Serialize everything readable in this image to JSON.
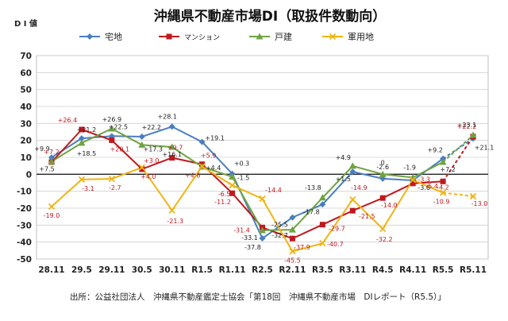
{
  "chart_data": {
    "type": "line",
    "title": "沖縄県不動産市場DI（取扱件数動向）",
    "ylabel": "D I 値",
    "xlabel": "",
    "ylim": [
      -50,
      70
    ],
    "yticks": [
      70,
      60,
      50,
      40,
      30,
      20,
      10,
      0,
      -10,
      -20,
      -30,
      -40,
      -50
    ],
    "categories": [
      "28.11",
      "29.5",
      "29.11",
      "30.5",
      "30.11",
      "R1.5",
      "R1.11",
      "R2.5",
      "R2.11",
      "R3.5",
      "R3.11",
      "R4.5",
      "R4.11",
      "R5.5",
      "R5.11"
    ],
    "grid": true,
    "legend_position": "top",
    "series": [
      {
        "name": "宅地",
        "color": "#4a7ec0",
        "marker": "diamond",
        "values": [
          9.9,
          21.2,
          22.5,
          22.2,
          28.1,
          19.1,
          0.3,
          -37.8,
          -25.5,
          -17.8,
          1.5,
          -2.6,
          -3.6,
          9.2,
          21.1
        ],
        "labels": [
          "+9.9",
          "+21.2",
          "+22.5",
          "+22.2",
          "+28.1",
          "+19.1",
          "+0.3",
          "-37.8",
          "-25.5",
          "-17.8",
          "+1.5",
          "-2.6",
          "-3.6",
          "+9.2",
          "+21.1"
        ]
      },
      {
        "name": "マンション",
        "color": "#c0181e",
        "marker": "square",
        "values": [
          7.2,
          26.4,
          20.1,
          3.0,
          9.7,
          5.9,
          -11.2,
          -31.4,
          -37.9,
          -29.7,
          -21.5,
          -14.0,
          -5.4,
          -4.2,
          22.2
        ],
        "labels": [
          "+7.2",
          "+26.4",
          "+20.1",
          "+3.0",
          "+9.7",
          "+5.9",
          "-11.2",
          "-31.4",
          "-37.9",
          "-29.7",
          "-21.5",
          "-14.0",
          "-5.4",
          "-4.2",
          "+22.2"
        ]
      },
      {
        "name": "戸建",
        "color": "#6ea342",
        "marker": "triangle",
        "values": [
          7.5,
          18.5,
          26.9,
          17.3,
          16.1,
          4.4,
          -1.5,
          -33.1,
          -32.7,
          -13.8,
          4.9,
          0.0,
          -1.9,
          7.2,
          23.1
        ],
        "labels": [
          "+7.5",
          "+18.5",
          "+26.9",
          "+17.3",
          "+16.1",
          "+4.4",
          "-1.5",
          "-33.1",
          "-32.7",
          "-13.8",
          "+4.9",
          "0",
          "-1.9",
          "+7.2",
          "+23.1"
        ]
      },
      {
        "name": "軍用地",
        "color": "#f0b414",
        "marker": "x",
        "values": [
          -19.0,
          -3.1,
          -2.7,
          4.0,
          -21.3,
          4.6,
          -6.5,
          -14.4,
          -45.5,
          -40.7,
          -14.9,
          -32.2,
          -3.3,
          -10.9,
          -13.0
        ],
        "labels": [
          "-19.0",
          "-3.1",
          "-2.7",
          "+4.0",
          "-21.3",
          "+4.6",
          "-6.5",
          "-14.4",
          "-45.5",
          "-40.7",
          "-14.9",
          "-32.2",
          "-3.3",
          "-10.9",
          "-13.0"
        ]
      }
    ]
  },
  "source": "出所：公益社団法人　沖縄県不動産鑑定士協会「第18回　沖縄県不動産市場　DIレポート（R5.5）」"
}
